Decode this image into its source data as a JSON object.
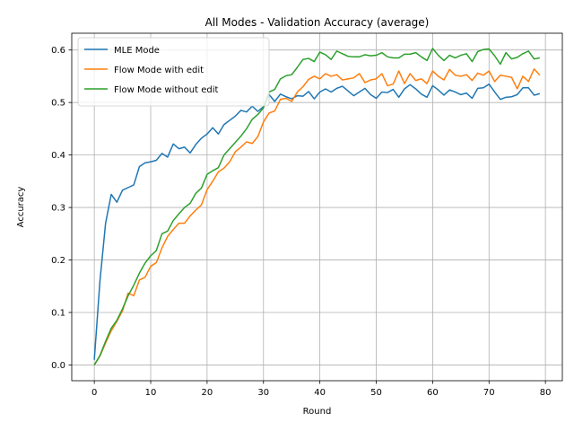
{
  "chart_data": {
    "type": "line",
    "title": "All Modes - Validation Accuracy (average)",
    "xlabel": "Round",
    "ylabel": "Accuracy",
    "xlim": [
      -4,
      83
    ],
    "ylim": [
      -0.03,
      0.632
    ],
    "xticks": [
      0,
      10,
      20,
      30,
      40,
      50,
      60,
      70,
      80
    ],
    "yticks": [
      0.0,
      0.1,
      0.2,
      0.3,
      0.4,
      0.5,
      0.6
    ],
    "ytick_labels": [
      "0.0",
      "0.1",
      "0.2",
      "0.3",
      "0.4",
      "0.5",
      "0.6"
    ],
    "grid": true,
    "legend_position": "upper-left",
    "series": [
      {
        "name": "MLE Mode",
        "color": "#1f77b4",
        "values": [
          0.01,
          0.16,
          0.27,
          0.325,
          0.31,
          0.333,
          0.338,
          0.343,
          0.378,
          0.385,
          0.387,
          0.39,
          0.403,
          0.396,
          0.421,
          0.412,
          0.415,
          0.404,
          0.42,
          0.432,
          0.44,
          0.452,
          0.44,
          0.458,
          0.466,
          0.474,
          0.485,
          0.482,
          0.493,
          0.483,
          0.492,
          0.515,
          0.502,
          0.516,
          0.511,
          0.507,
          0.513,
          0.512,
          0.521,
          0.507,
          0.52,
          0.526,
          0.52,
          0.527,
          0.531,
          0.522,
          0.513,
          0.52,
          0.527,
          0.515,
          0.508,
          0.52,
          0.519,
          0.525,
          0.51,
          0.526,
          0.534,
          0.526,
          0.516,
          0.51,
          0.532,
          0.524,
          0.514,
          0.524,
          0.52,
          0.515,
          0.518,
          0.508,
          0.527,
          0.528,
          0.535,
          0.52,
          0.506,
          0.51,
          0.511,
          0.515,
          0.528,
          0.528,
          0.514,
          0.517
        ]
      },
      {
        "name": "Flow Mode with edit",
        "color": "#ff7f0e",
        "values": [
          0.0,
          0.017,
          0.042,
          0.065,
          0.083,
          0.103,
          0.137,
          0.132,
          0.162,
          0.167,
          0.188,
          0.195,
          0.223,
          0.245,
          0.258,
          0.27,
          0.27,
          0.284,
          0.295,
          0.305,
          0.334,
          0.35,
          0.368,
          0.375,
          0.387,
          0.406,
          0.415,
          0.425,
          0.422,
          0.435,
          0.463,
          0.48,
          0.484,
          0.506,
          0.508,
          0.502,
          0.52,
          0.53,
          0.544,
          0.55,
          0.545,
          0.555,
          0.55,
          0.553,
          0.543,
          0.545,
          0.547,
          0.555,
          0.538,
          0.543,
          0.545,
          0.555,
          0.532,
          0.535,
          0.56,
          0.536,
          0.555,
          0.542,
          0.545,
          0.536,
          0.56,
          0.55,
          0.543,
          0.563,
          0.552,
          0.55,
          0.553,
          0.542,
          0.556,
          0.552,
          0.56,
          0.54,
          0.552,
          0.55,
          0.548,
          0.526,
          0.55,
          0.54,
          0.564,
          0.552
        ]
      },
      {
        "name": "Flow Mode without edit",
        "color": "#2ca02c",
        "values": [
          0.0,
          0.018,
          0.045,
          0.07,
          0.085,
          0.107,
          0.132,
          0.152,
          0.175,
          0.194,
          0.208,
          0.218,
          0.25,
          0.255,
          0.275,
          0.288,
          0.3,
          0.308,
          0.327,
          0.337,
          0.363,
          0.37,
          0.376,
          0.4,
          0.412,
          0.424,
          0.436,
          0.45,
          0.468,
          0.477,
          0.49,
          0.52,
          0.525,
          0.545,
          0.551,
          0.553,
          0.567,
          0.582,
          0.584,
          0.578,
          0.596,
          0.591,
          0.582,
          0.598,
          0.593,
          0.588,
          0.587,
          0.587,
          0.591,
          0.589,
          0.59,
          0.595,
          0.587,
          0.585,
          0.585,
          0.592,
          0.592,
          0.595,
          0.587,
          0.58,
          0.603,
          0.59,
          0.58,
          0.59,
          0.585,
          0.59,
          0.593,
          0.578,
          0.597,
          0.601,
          0.602,
          0.589,
          0.573,
          0.595,
          0.583,
          0.586,
          0.593,
          0.598,
          0.583,
          0.585
        ]
      }
    ]
  }
}
